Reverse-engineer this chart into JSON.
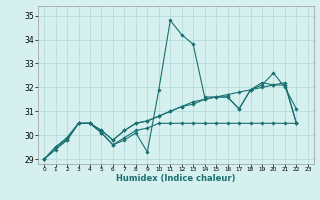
{
  "xlabel": "Humidex (Indice chaleur)",
  "ylabel": "",
  "background_color": "#d6f0f0",
  "grid_color": "#b0d8d8",
  "line_color": "#1a7070",
  "xlim": [
    -0.5,
    23.5
  ],
  "ylim": [
    28.8,
    35.4
  ],
  "yticks": [
    29,
    30,
    31,
    32,
    33,
    34,
    35
  ],
  "xticks": [
    0,
    1,
    2,
    3,
    4,
    5,
    6,
    7,
    8,
    9,
    10,
    11,
    12,
    13,
    14,
    15,
    16,
    17,
    18,
    19,
    20,
    21,
    22,
    23
  ],
  "series": [
    [
      29.0,
      29.5,
      29.8,
      30.5,
      30.5,
      30.1,
      29.6,
      29.8,
      30.1,
      29.3,
      31.9,
      34.8,
      34.2,
      33.8,
      31.6,
      31.6,
      31.6,
      31.1,
      31.9,
      32.1,
      32.6,
      32.0,
      31.1
    ],
    [
      29.0,
      29.4,
      29.8,
      30.5,
      30.5,
      30.1,
      29.6,
      29.9,
      30.2,
      30.3,
      30.5,
      30.5,
      30.5,
      30.5,
      30.5,
      30.5,
      30.5,
      30.5,
      30.5,
      30.5,
      30.5,
      30.5,
      30.5
    ],
    [
      29.0,
      29.5,
      29.9,
      30.5,
      30.5,
      30.2,
      29.8,
      30.2,
      30.5,
      30.6,
      30.8,
      31.0,
      31.2,
      31.4,
      31.5,
      31.6,
      31.6,
      31.1,
      31.9,
      32.2,
      32.1,
      32.1,
      30.5
    ],
    [
      29.0,
      29.5,
      29.9,
      30.5,
      30.5,
      30.2,
      29.8,
      30.2,
      30.5,
      30.6,
      30.8,
      31.0,
      31.2,
      31.3,
      31.5,
      31.6,
      31.7,
      31.8,
      31.9,
      32.0,
      32.1,
      32.2,
      30.5
    ]
  ]
}
